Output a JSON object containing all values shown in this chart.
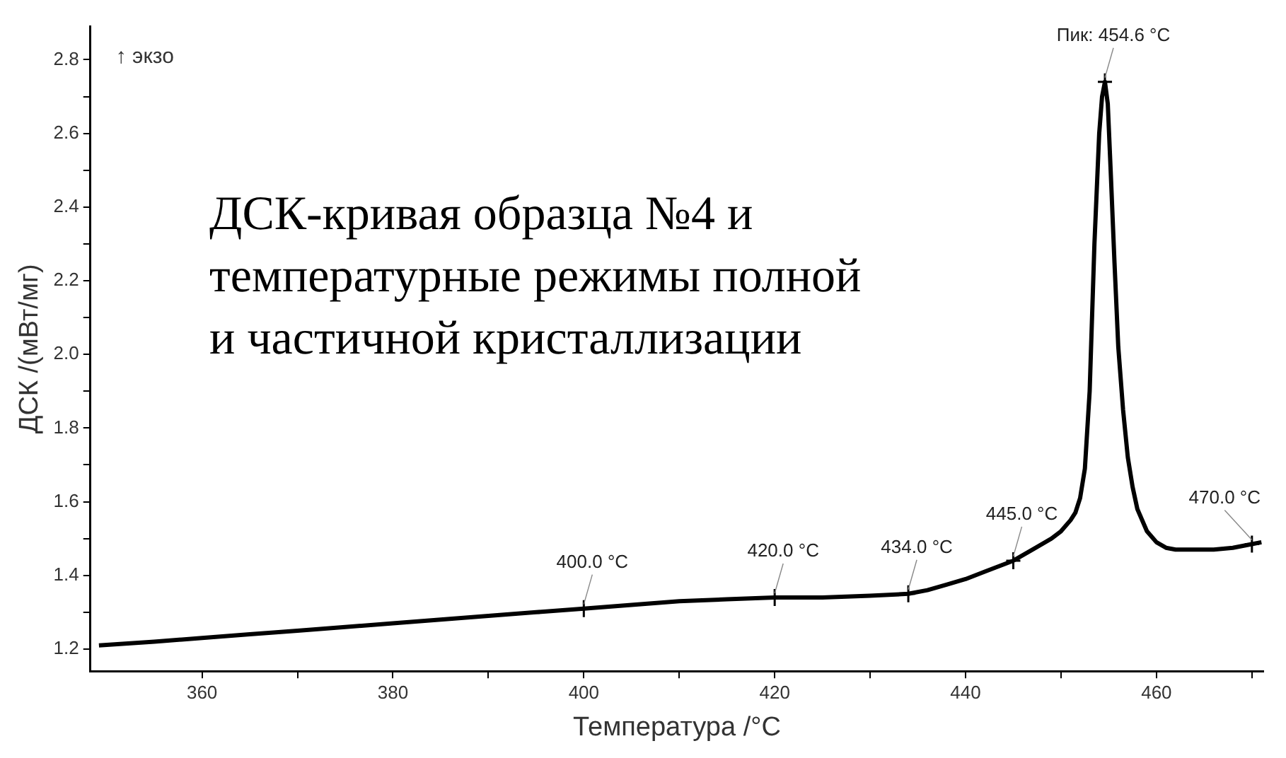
{
  "chart_data": {
    "type": "line",
    "title": "ДСК-кривая образца №4 и температурные режимы полной и частичной кристаллизации",
    "xlabel": "Температура /°C",
    "ylabel": "ДСК /(мВт/мг)",
    "xlim": [
      348.3,
      471.2
    ],
    "ylim": [
      1.14,
      2.89
    ],
    "xticks": [
      360,
      {
        "value": 370,
        "label": null
      },
      380,
      {
        "value": 390,
        "label": null
      },
      400,
      {
        "value": 410,
        "label": null
      },
      420,
      {
        "value": 430,
        "label": null
      },
      440,
      {
        "value": 450,
        "label": null
      },
      460,
      {
        "value": 470,
        "label": null
      }
    ],
    "yticks": [
      1.2,
      {
        "value": 1.3,
        "label": null
      },
      1.4,
      {
        "value": 1.5,
        "label": null
      },
      1.6,
      {
        "value": 1.7,
        "label": null
      },
      1.8,
      {
        "value": 1.9,
        "label": null
      },
      {
        "value": 2.0,
        "label": "2.0"
      },
      {
        "value": 2.1,
        "label": null
      },
      2.2,
      {
        "value": 2.3,
        "label": null
      },
      2.4,
      {
        "value": 2.5,
        "label": null
      },
      2.6,
      {
        "value": 2.7,
        "label": null
      },
      2.8
    ],
    "grid": false,
    "legend": false,
    "marker": "none",
    "line_style": "solid",
    "series": [
      {
        "color": "#000000",
        "x": [
          349.2,
          355,
          360,
          365,
          370,
          375,
          380,
          385,
          390,
          395,
          400,
          405,
          410,
          415,
          420,
          425,
          430,
          434,
          436,
          438,
          440,
          442,
          445,
          447,
          449,
          450,
          451,
          451.5,
          452,
          452.5,
          453,
          453.5,
          454,
          454.3,
          454.6,
          454.9,
          455.2,
          455.6,
          456,
          456.5,
          457,
          457.5,
          458,
          459,
          460,
          461,
          462,
          464,
          466,
          468,
          470,
          471
        ],
        "values": [
          1.21,
          1.22,
          1.23,
          1.24,
          1.25,
          1.26,
          1.27,
          1.28,
          1.29,
          1.3,
          1.31,
          1.32,
          1.33,
          1.335,
          1.34,
          1.34,
          1.345,
          1.35,
          1.36,
          1.375,
          1.39,
          1.41,
          1.44,
          1.47,
          1.5,
          1.52,
          1.55,
          1.57,
          1.61,
          1.69,
          1.9,
          2.3,
          2.6,
          2.7,
          2.74,
          2.68,
          2.5,
          2.25,
          2.02,
          1.85,
          1.72,
          1.64,
          1.58,
          1.52,
          1.49,
          1.475,
          1.47,
          1.47,
          1.47,
          1.475,
          1.485,
          1.49
        ]
      }
    ],
    "annotations": [
      "↑ экзо",
      {
        "text": "400.0 °C",
        "x": 400,
        "y": 1.31
      },
      {
        "text": "420.0 °C",
        "x": 420,
        "y": 1.34
      },
      {
        "text": "434.0 °C",
        "x": 434,
        "y": 1.35
      },
      {
        "text": "445.0 °C",
        "x": 445,
        "y": 1.44
      },
      {
        "text": "Пик: 454.6 °C",
        "x": 454.6,
        "y": 2.74
      },
      {
        "text": "470.0 °C",
        "x": 470,
        "y": 1.485
      }
    ]
  }
}
